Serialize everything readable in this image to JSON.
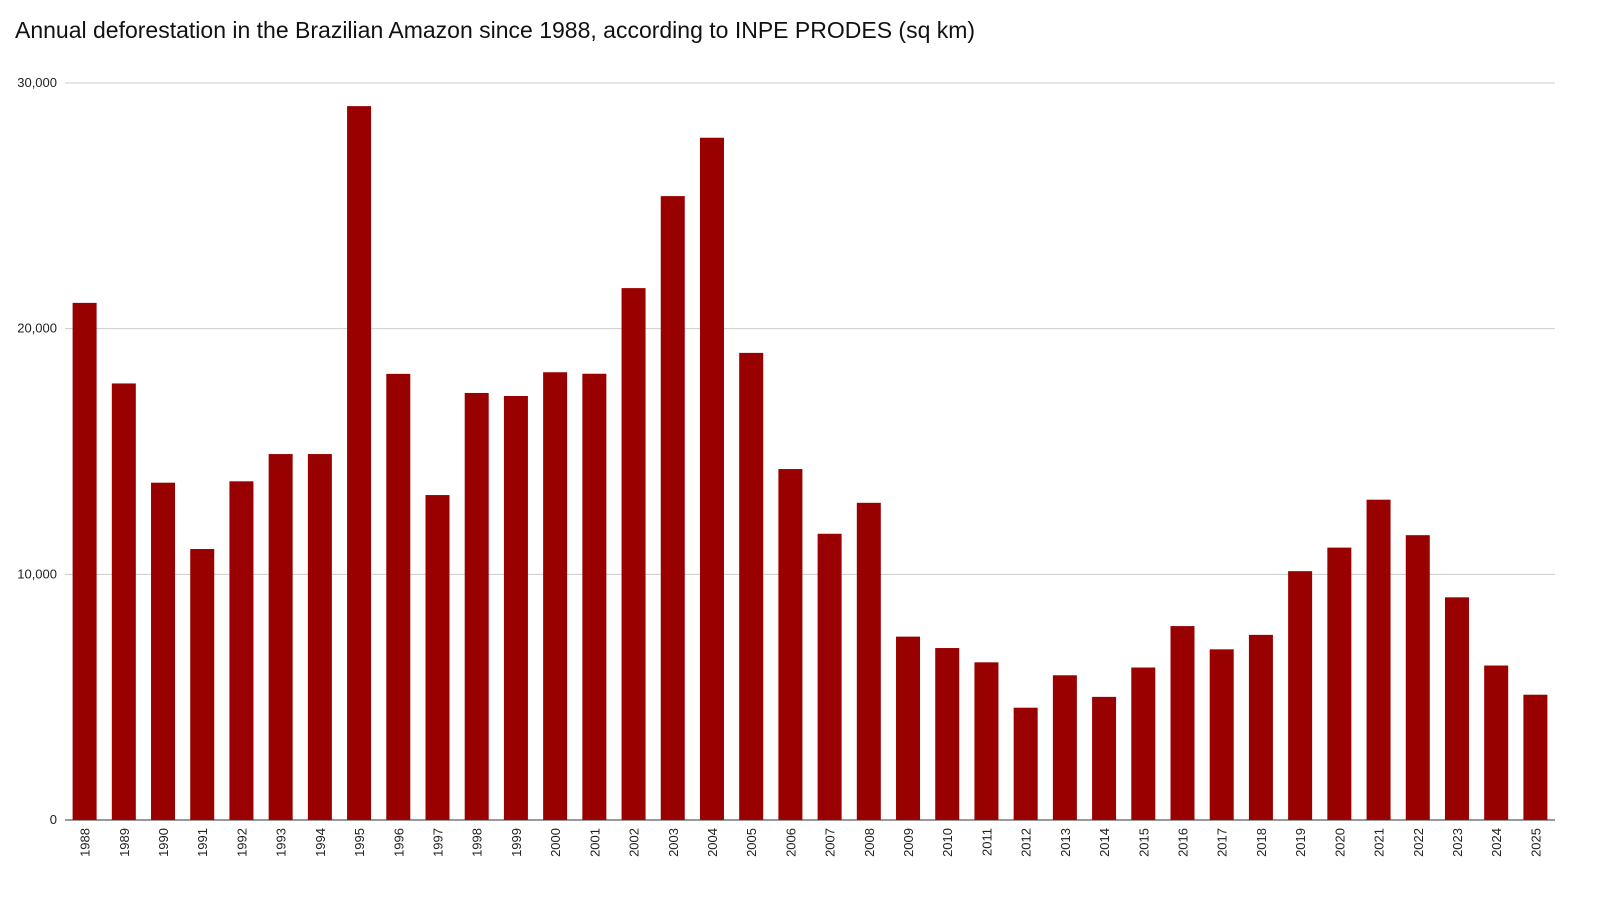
{
  "chart_data": {
    "type": "bar",
    "title": "Annual deforestation in the Brazilian Amazon since 1988, according to INPE PRODES (sq km)",
    "xlabel": "",
    "ylabel": "",
    "ylim": [
      0,
      30000
    ],
    "yticks": [
      0,
      10000,
      20000,
      30000
    ],
    "ytick_labels": [
      "0",
      "10,000",
      "20,000",
      "30,000"
    ],
    "grid": true,
    "legend": "none",
    "bar_color": "#990000",
    "categories": [
      "1988",
      "1989",
      "1990",
      "1991",
      "1992",
      "1993",
      "1994",
      "1995",
      "1996",
      "1997",
      "1998",
      "1999",
      "2000",
      "2001",
      "2002",
      "2003",
      "2004",
      "2005",
      "2006",
      "2007",
      "2008",
      "2009",
      "2010",
      "2011",
      "2012",
      "2013",
      "2014",
      "2015",
      "2016",
      "2017",
      "2018",
      "2019",
      "2020",
      "2021",
      "2022",
      "2023",
      "2024",
      "2025"
    ],
    "values": [
      21050,
      17770,
      13730,
      11030,
      13786,
      14896,
      14896,
      29059,
      18161,
      13227,
      17383,
      17259,
      18226,
      18165,
      21651,
      25396,
      27772,
      19014,
      14286,
      11651,
      12911,
      7464,
      7000,
      6418,
      4571,
      5891,
      5012,
      6207,
      7893,
      6947,
      7536,
      10129,
      11088,
      13038,
      11594,
      9064,
      6288,
      5100
    ]
  }
}
